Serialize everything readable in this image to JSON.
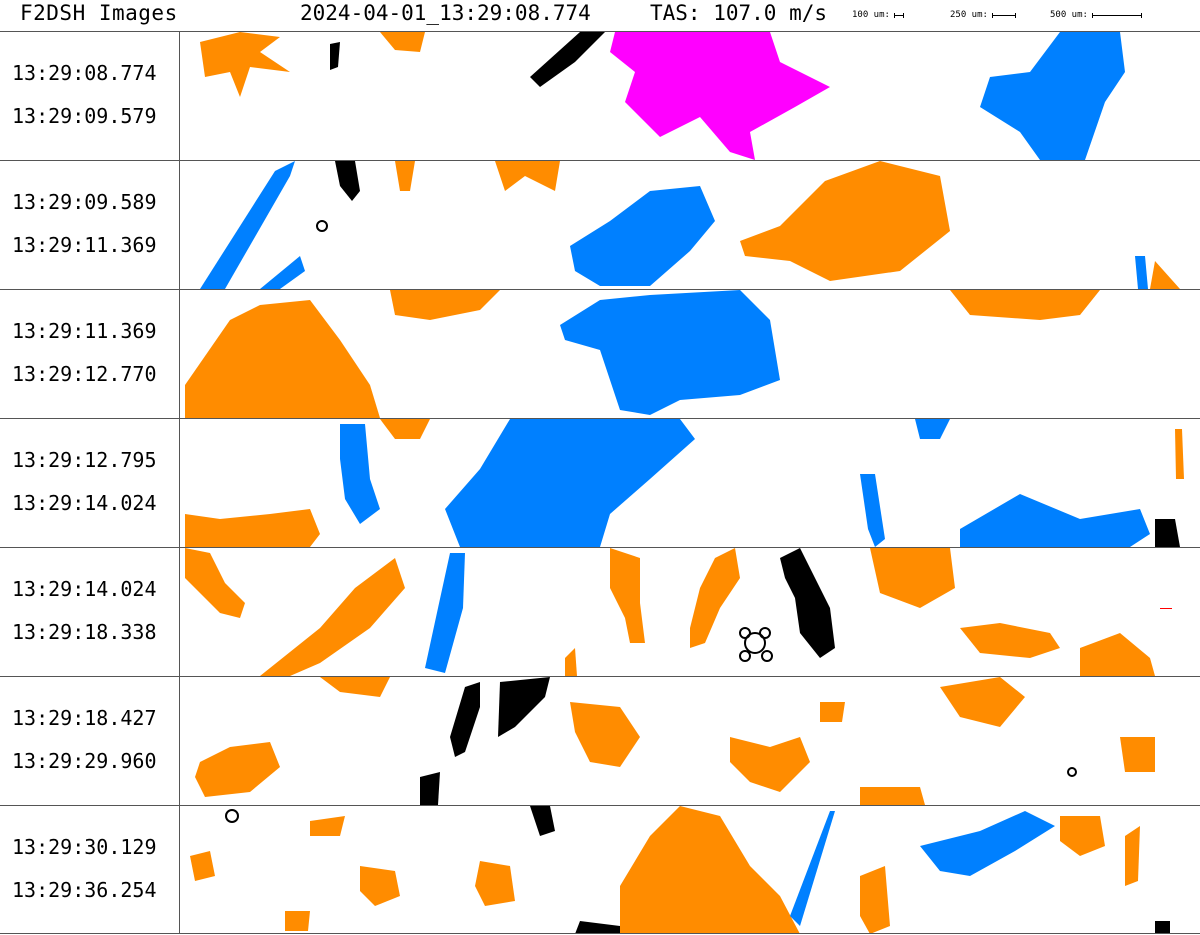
{
  "header": {
    "title": "F2DSH Images",
    "timestamp": "2024-04-01_13:29:08.774",
    "tas": "TAS: 107.0 m/s",
    "scale_100": "100 um:",
    "scale_250": "250 um:",
    "scale_500": "500 um:"
  },
  "colors": {
    "orange": "#ff8c00",
    "blue": "#0080ff",
    "magenta": "#ff00ff",
    "black": "#000000"
  },
  "strips": [
    {
      "start": "13:29:08.774",
      "end": "13:29:09.579"
    },
    {
      "start": "13:29:09.589",
      "end": "13:29:11.369"
    },
    {
      "start": "13:29:11.369",
      "end": "13:29:12.770"
    },
    {
      "start": "13:29:12.795",
      "end": "13:29:14.024"
    },
    {
      "start": "13:29:14.024",
      "end": "13:29:18.338"
    },
    {
      "start": "13:29:18.427",
      "end": "13:29:29.960"
    },
    {
      "start": "13:29:30.129",
      "end": "13:29:36.254"
    }
  ]
}
